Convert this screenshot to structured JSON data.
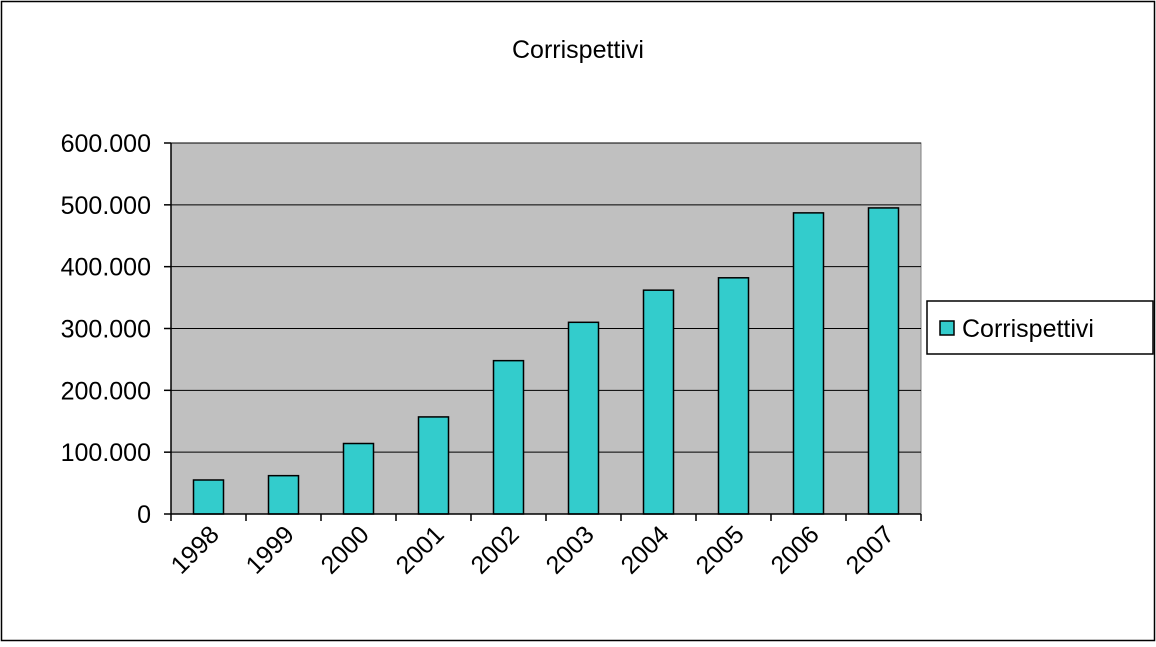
{
  "chart_data": {
    "type": "bar",
    "title": "Corrispettivi",
    "xlabel": "",
    "ylabel": "",
    "categories": [
      "1998",
      "1999",
      "2000",
      "2001",
      "2002",
      "2003",
      "2004",
      "2005",
      "2006",
      "2007"
    ],
    "series": [
      {
        "name": "Corrispettivi",
        "values": [
          55000,
          62000,
          114000,
          157000,
          248000,
          310000,
          362000,
          382000,
          487000,
          495000
        ]
      }
    ],
    "ylim": [
      0,
      600000
    ],
    "yticks": [
      0,
      100000,
      200000,
      300000,
      400000,
      500000,
      600000
    ],
    "ytick_labels": [
      "0",
      "100.000",
      "200.000",
      "300.000",
      "400.000",
      "500.000",
      "600.000"
    ],
    "grid": true,
    "legend_position": "right",
    "colors": {
      "bar_fill": "#33CCCC",
      "plot_background": "#C0C0C0",
      "gridline": "#000000"
    }
  }
}
